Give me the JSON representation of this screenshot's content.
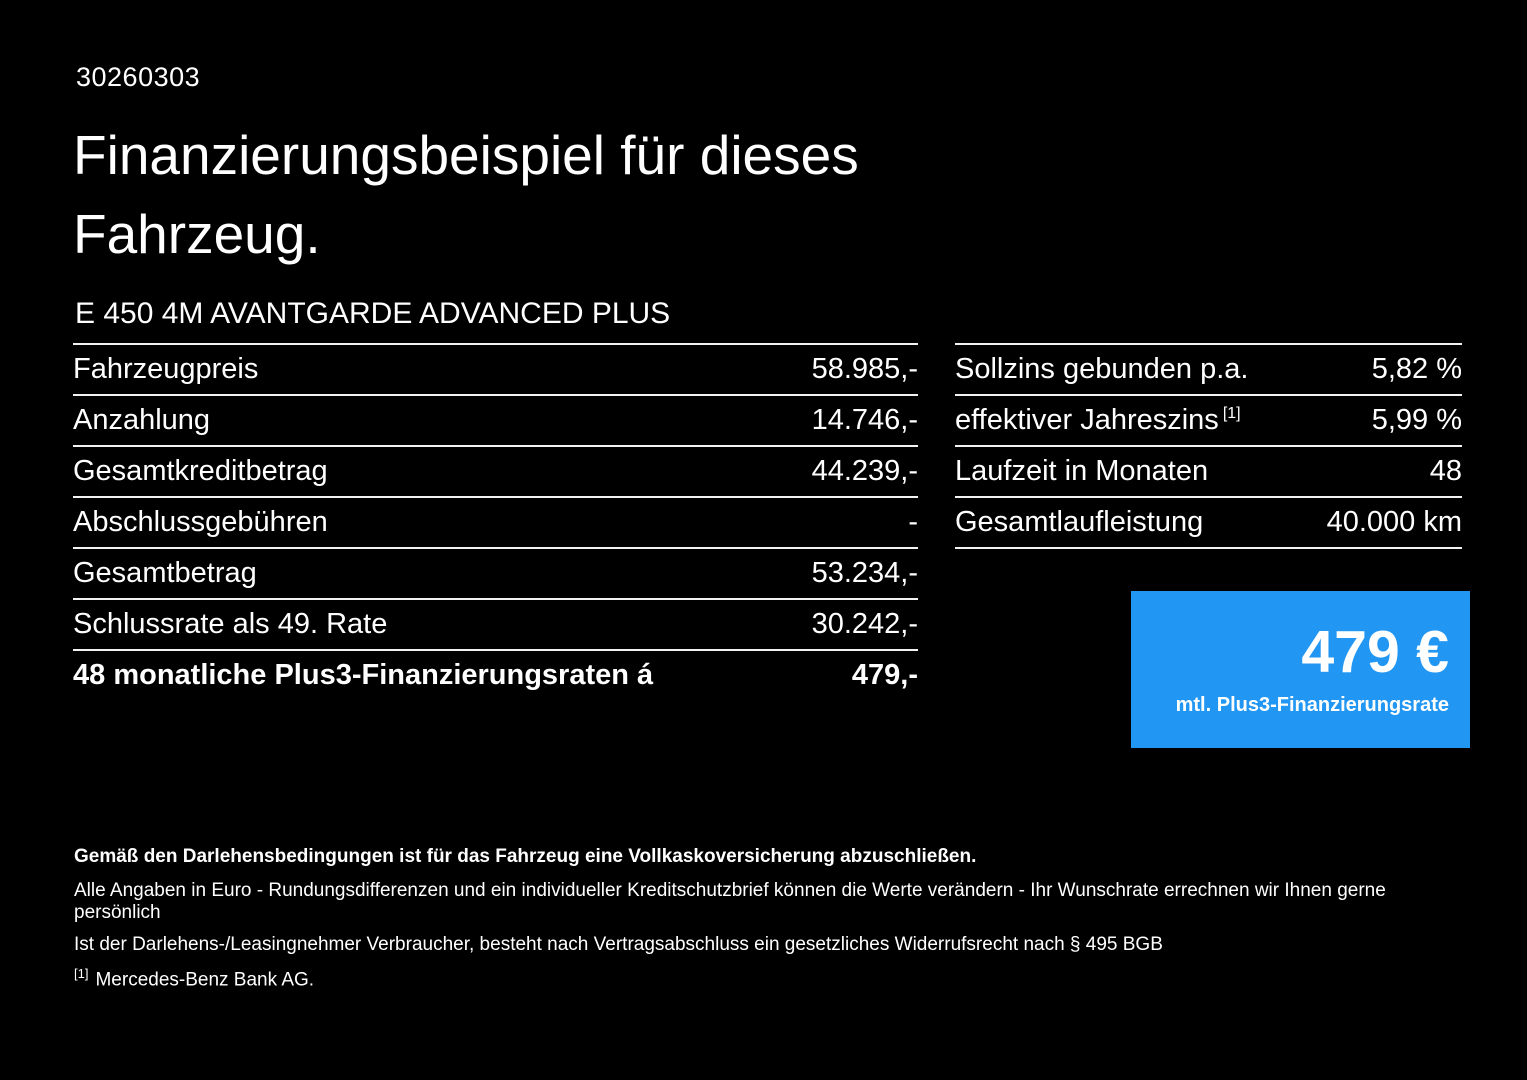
{
  "header": {
    "doc_id": "30260303",
    "title": "Finanzierungsbeispiel für dieses Fahrzeug.",
    "model": "E 450 4M AVANTGARDE ADVANCED PLUS"
  },
  "financing_table": {
    "rows": [
      {
        "label": "Fahrzeugpreis",
        "value": "58.985,-"
      },
      {
        "label": "Anzahlung",
        "value": "14.746,-"
      },
      {
        "label": "Gesamtkreditbetrag",
        "value": "44.239,-"
      },
      {
        "label": "Abschlussgebühren",
        "value": "-"
      },
      {
        "label": "Gesamtbetrag",
        "value": "53.234,-"
      },
      {
        "label": "Schlussrate als 49. Rate",
        "value": "30.242,-"
      },
      {
        "label": "48 monatliche Plus3-Finanzierungsraten á",
        "value": "479,-"
      }
    ]
  },
  "conditions_table": {
    "rows": [
      {
        "label": "Sollzins gebunden p.a.",
        "value": "5,82 %"
      },
      {
        "label": "effektiver Jahreszins",
        "footnote_marker": "[1]",
        "value": "5,99 %"
      },
      {
        "label": "Laufzeit in Monaten",
        "value": "48"
      },
      {
        "label": "Gesamtlaufleistung",
        "value": "40.000 km"
      }
    ]
  },
  "rate_box": {
    "amount": "479 €",
    "caption": "mtl. Plus3-Finanzierungsrate"
  },
  "footnotes": {
    "insurance_note": "Gemäß den Darlehensbedingungen ist für das Fahrzeug eine Vollkaskoversicherung abzuschließen.",
    "rounding_note": "Alle Angaben in Euro - Rundungsdifferenzen und ein individueller Kreditschutzbrief können die Werte verändern - Ihr Wunschrate errechnen wir Ihnen gerne persönlich",
    "withdrawal_note": "Ist der Darlehens-/Leasingnehmer Verbraucher, besteht nach Vertragsabschluss ein gesetzliches Widerrufsrecht nach § 495 BGB",
    "reference_marker": "[1]",
    "reference_text": "Mercedes-Benz Bank AG."
  },
  "colors": {
    "background": "#000000",
    "text": "#ffffff",
    "accent_blue": "#2196f3",
    "divider": "#f2f2f2"
  }
}
